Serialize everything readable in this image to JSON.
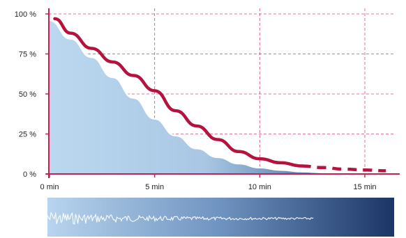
{
  "chart_data": {
    "type": "area",
    "title": "",
    "xlabel": "",
    "ylabel": "",
    "x_ticks": [
      {
        "value": 0,
        "label": "0 min"
      },
      {
        "value": 5,
        "label": "5 min"
      },
      {
        "value": 10,
        "label": "10 min"
      },
      {
        "value": 15,
        "label": "15 min"
      }
    ],
    "y_ticks": [
      {
        "value": 0,
        "label": "0 %"
      },
      {
        "value": 25,
        "label": "25 %"
      },
      {
        "value": 50,
        "label": "50 %"
      },
      {
        "value": 75,
        "label": "75 %"
      },
      {
        "value": 100,
        "label": "100 %"
      }
    ],
    "xlim": [
      0,
      16.5
    ],
    "ylim": [
      0,
      100
    ],
    "grid": true,
    "series": [
      {
        "name": "",
        "style": "filled-area-white-edge",
        "x": [
          0,
          1,
          2,
          3,
          4,
          5,
          6,
          7,
          8,
          9,
          10,
          11,
          12,
          13,
          14,
          15,
          16.5
        ],
        "y": [
          96,
          84.5,
          73,
          60.5,
          47.5,
          34.5,
          24,
          16,
          10.5,
          6.5,
          4,
          2.5,
          1.5,
          1,
          0.6,
          0.3,
          0.2
        ]
      },
      {
        "name": "",
        "style": "thick-red-line",
        "x": [
          0.25,
          1,
          2,
          3,
          4,
          5,
          6,
          7,
          8,
          9,
          10,
          11,
          12
        ],
        "y": [
          97,
          88,
          78.5,
          70,
          61.5,
          52,
          39.5,
          30,
          21.5,
          14,
          9.5,
          7,
          5
        ]
      },
      {
        "name": "",
        "style": "thick-red-dashed",
        "x": [
          12,
          13,
          14,
          15,
          16
        ],
        "y": [
          5,
          4,
          3,
          2.5,
          2
        ]
      }
    ],
    "colors": {
      "line": "#b5123e",
      "grid": "#c8204e",
      "axis": "#c8204e",
      "fill_light": "#b9d6ef",
      "fill_dark": "#1f3c6e"
    }
  }
}
